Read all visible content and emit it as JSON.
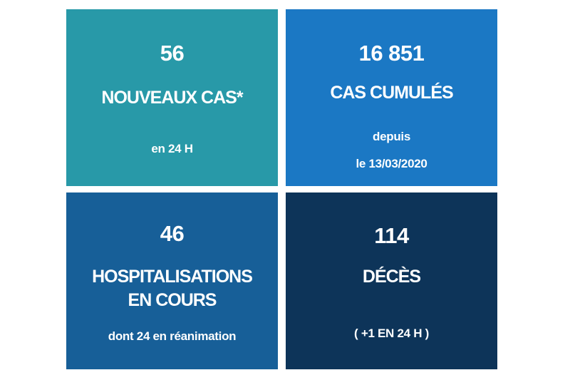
{
  "tiles": [
    {
      "value": "56",
      "label": "NOUVEAUX CAS*",
      "sub": "en 24 H",
      "color": "#2899a8"
    },
    {
      "value": "16 851",
      "label": "CAS CUMULÉS",
      "sub1": "depuis",
      "sub2": "le 13/03/2020",
      "color": "#1b78c4"
    },
    {
      "value": "46",
      "label1": "HOSPITALISATIONS",
      "label2": "EN COURS",
      "sub": "dont 24 en réanimation",
      "color": "#175f98"
    },
    {
      "value": "114",
      "label": "DÉCÈS",
      "sub": "( +1 EN 24 H )",
      "color": "#0d3459"
    }
  ]
}
